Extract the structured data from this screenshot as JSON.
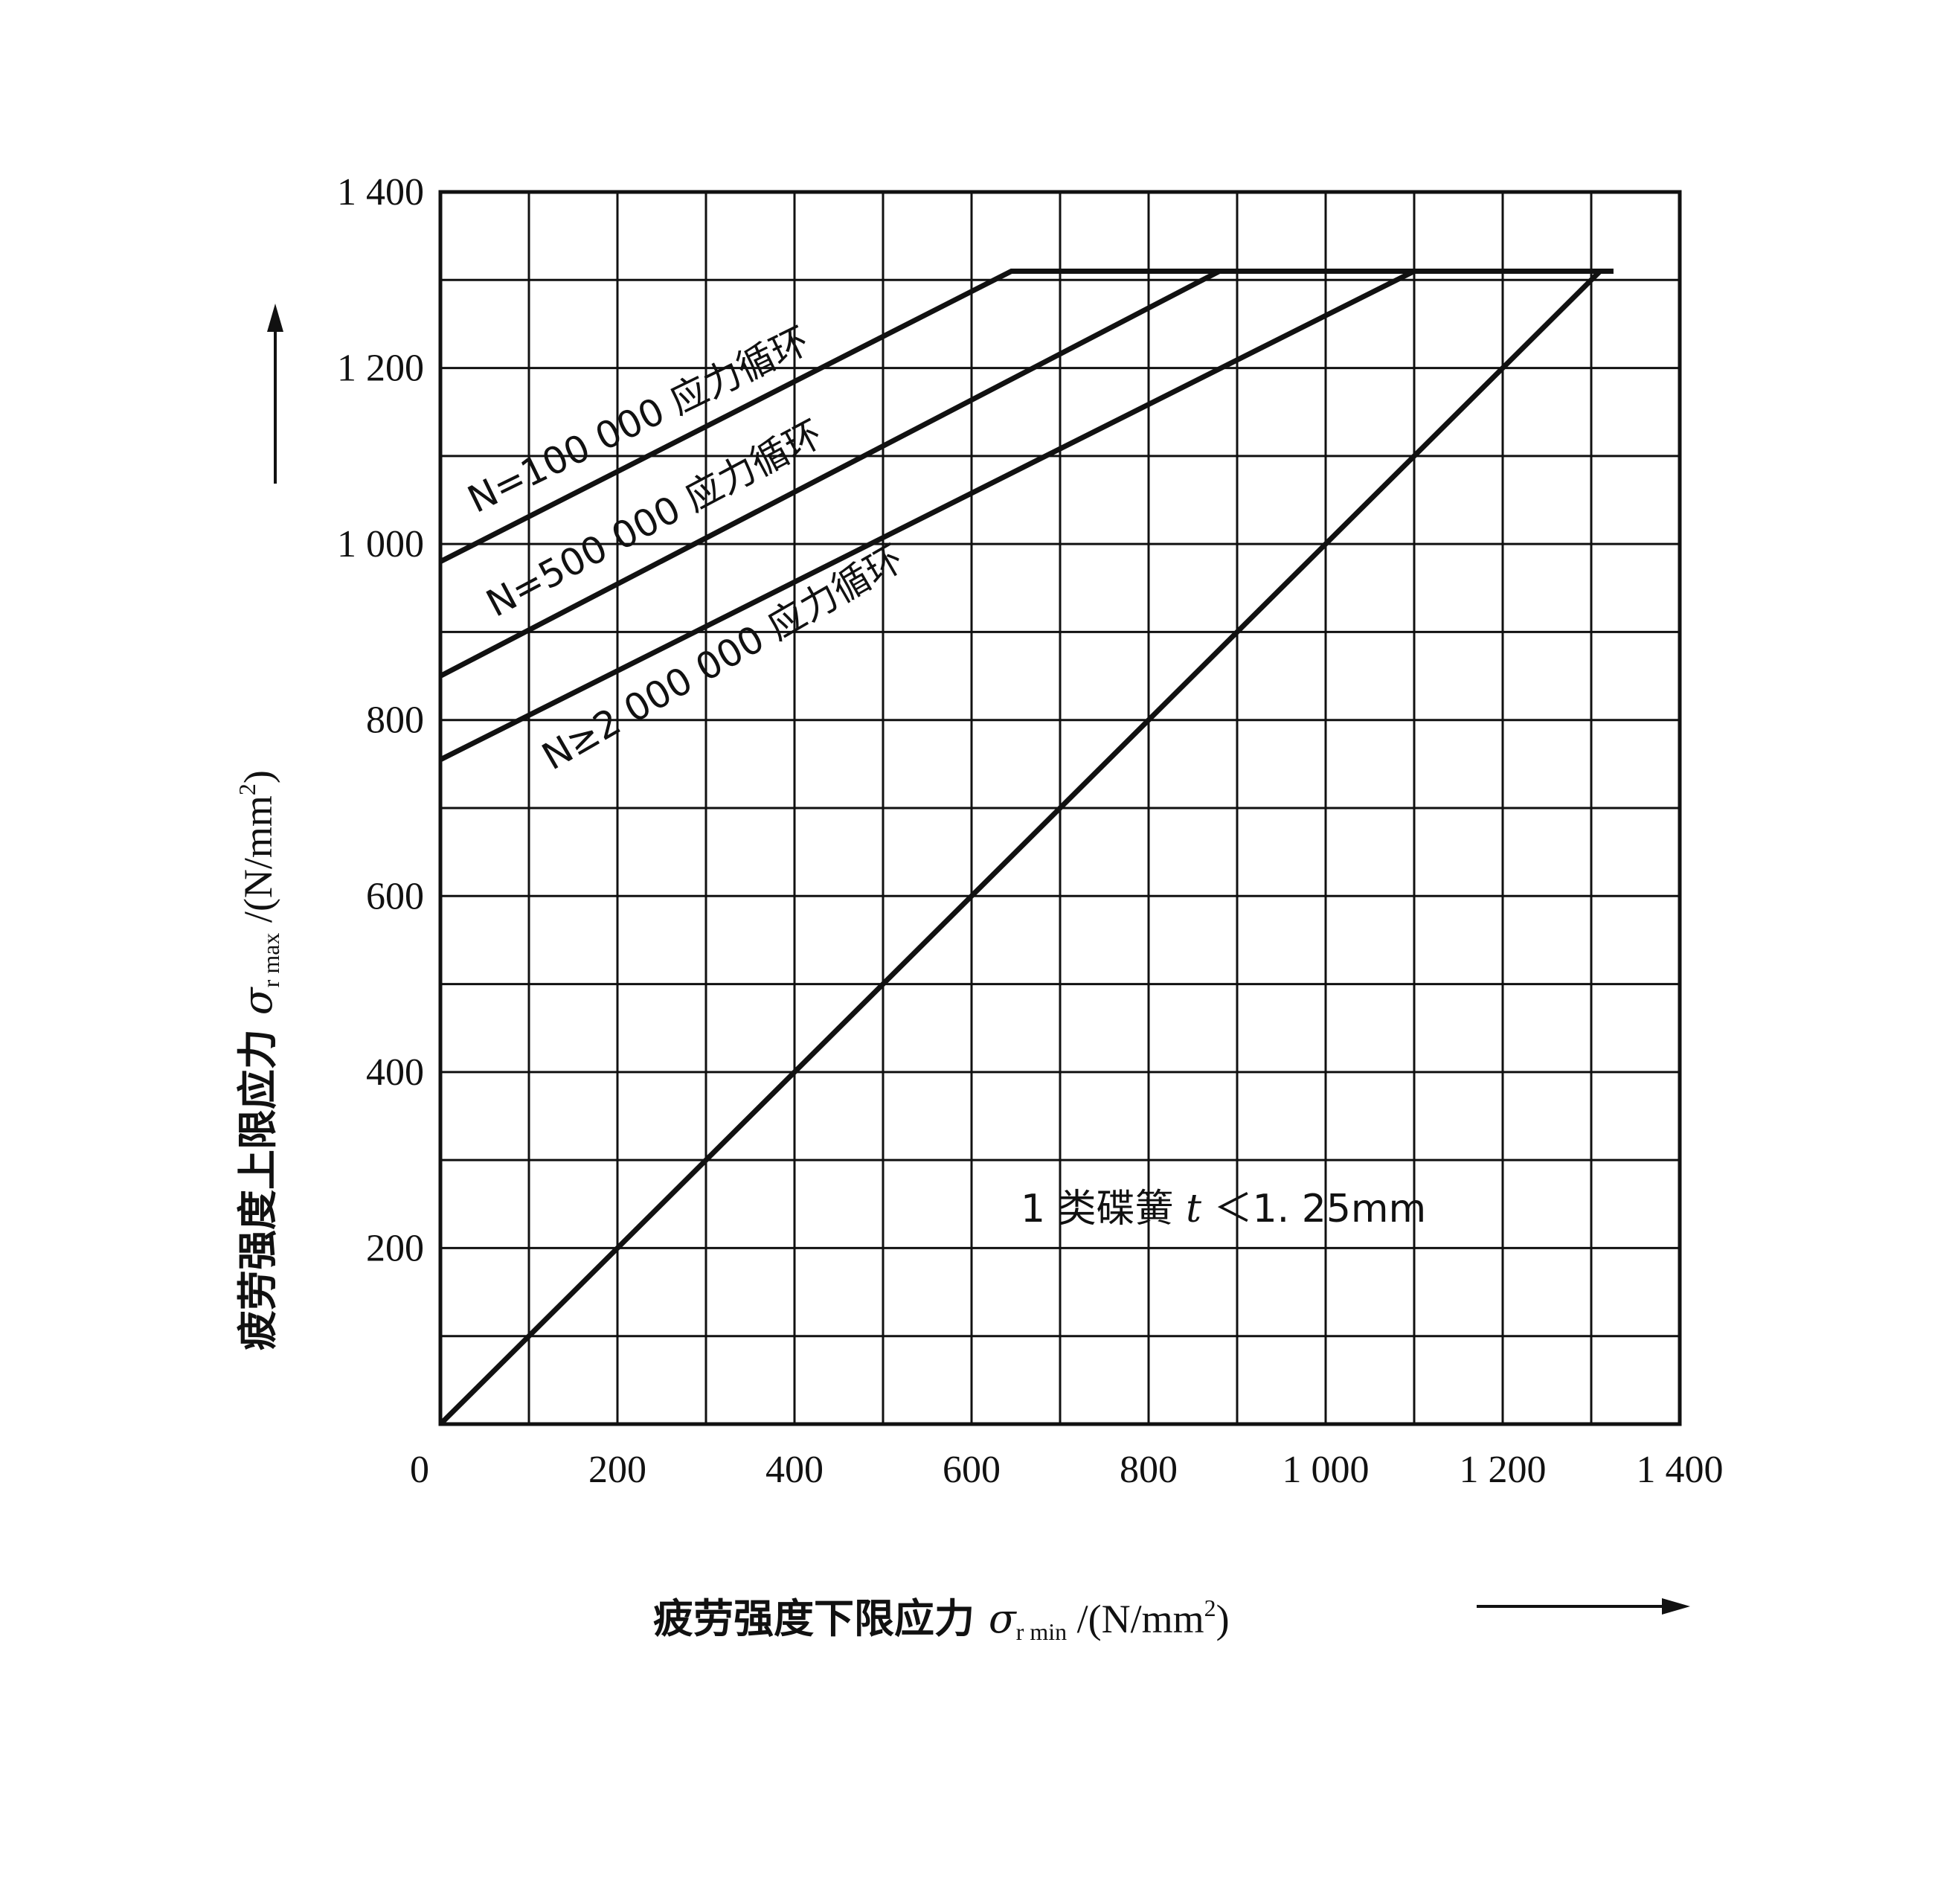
{
  "chart_data": {
    "type": "line",
    "xlabel": {
      "prefix": "疲劳强度下限应力 ",
      "symbol": "σ",
      "subscript": "r min",
      "unit": " /(N/mm",
      "unit_sup": "2",
      "unit_end": ")"
    },
    "ylabel": {
      "prefix": "疲劳强度上限应力 ",
      "symbol": "σ",
      "subscript": "r max",
      "unit": " /(N/mm",
      "unit_sup": "2",
      "unit_end": ")"
    },
    "xlim": [
      0,
      1400
    ],
    "ylim": [
      0,
      1400
    ],
    "x_ticks": [
      0,
      200,
      400,
      600,
      800,
      1000,
      1200,
      1400
    ],
    "x_tick_labels": [
      "0",
      "200",
      "400",
      "600",
      "800",
      "1 000",
      "1 200",
      "1 400"
    ],
    "y_ticks": [
      200,
      400,
      600,
      800,
      1000,
      1200,
      1400
    ],
    "y_tick_labels": [
      "200",
      "400",
      "600",
      "800",
      "1 000",
      "1 200",
      "1 400"
    ],
    "grid": true,
    "grid_step": 100,
    "series": [
      {
        "name": "N=100 000 应力循环",
        "x": [
          0,
          645,
          1325
        ],
        "y": [
          980,
          1310,
          1310
        ]
      },
      {
        "name": "N=500 000 应力循环",
        "x": [
          0,
          880,
          1325
        ],
        "y": [
          850,
          1310,
          1310
        ]
      },
      {
        "name": "N≥2 000 000 应力循环",
        "x": [
          0,
          1100,
          1325
        ],
        "y": [
          755,
          1310,
          1310
        ]
      },
      {
        "name": "",
        "x": [
          0,
          1310
        ],
        "y": [
          0,
          1310
        ]
      }
    ],
    "annotations": [
      {
        "prefix": "1 类碟簧 ",
        "variable": "t",
        "suffix": " ＜1. 25mm"
      }
    ]
  }
}
